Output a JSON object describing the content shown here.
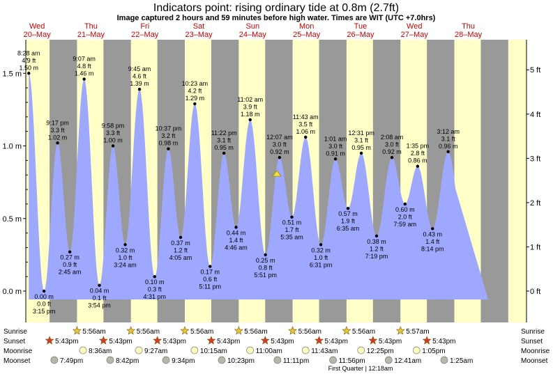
{
  "title": "Indicators point: rising  ordinary tide at 0.8m (2.7ft)",
  "subtitle": "Image captured 2 hours and 59 minutes before high water. Times are WIT (UTC +7.0hrs)",
  "colors": {
    "day_background": "#ffffc8",
    "night_background": "#999999",
    "tide_fill": "#9fa8ff",
    "day_label": "#cc0000",
    "sun_star": "#e8c53a",
    "sunset_star": "#d63a2a",
    "moonrise_circle": "#ffffc0",
    "moonset_circle": "#b8b8a8"
  },
  "days": [
    {
      "dow": "Wed",
      "date": "20–May"
    },
    {
      "dow": "Thu",
      "date": "21–May"
    },
    {
      "dow": "Fri",
      "date": "22–May"
    },
    {
      "dow": "Sat",
      "date": "23–May"
    },
    {
      "dow": "Sun",
      "date": "24–May"
    },
    {
      "dow": "Mon",
      "date": "25–May"
    },
    {
      "dow": "Tue",
      "date": "26–May"
    },
    {
      "dow": "Wed",
      "date": "27–May"
    },
    {
      "dow": "Thu",
      "date": "28–May"
    }
  ],
  "chart_data": {
    "type": "area",
    "title": "Indicators point: rising  ordinary tide at 0.8m (2.7ft)",
    "subtitle": "Image captured 2 hours and 59 minutes before high water. Times are WIT (UTC +7.0hrs)",
    "y_axis_left": {
      "unit": "m",
      "ticks": [
        "0.0 m",
        "0.5 m",
        "1.0 m",
        "1.5 m"
      ],
      "values": [
        0.0,
        0.5,
        1.0,
        1.5
      ],
      "range": [
        -0.05,
        1.72
      ]
    },
    "y_axis_right": {
      "unit": "ft",
      "ticks": [
        "0 ft",
        "1 ft",
        "2 ft",
        "3 ft",
        "4 ft",
        "5 ft"
      ],
      "values": [
        0,
        1,
        2,
        3,
        4,
        5
      ]
    },
    "x_range_days": [
      "20–May",
      "28–May"
    ],
    "current_level": {
      "height_m": 0.8,
      "height_ft": 2.7,
      "state": "rising",
      "day": "Sun 24–May"
    },
    "tides": [
      {
        "day": 0,
        "time": "8:28 am",
        "ft": "4.9 ft",
        "m": 1.5,
        "m_label": "1.50 m",
        "type": "high"
      },
      {
        "day": 0,
        "time": "3:15 pm",
        "ft": "0.0 ft",
        "m": 0.0,
        "m_label": "0.00 m",
        "type": "low"
      },
      {
        "day": 0,
        "time": "9:17 pm",
        "ft": "3.3 ft",
        "m": 1.02,
        "m_label": "1.02 m",
        "type": "high"
      },
      {
        "day": 1,
        "time": "2:45 am",
        "ft": "0.9 ft",
        "m": 0.27,
        "m_label": "0.27 m",
        "type": "low"
      },
      {
        "day": 1,
        "time": "9:07 am",
        "ft": "4.8 ft",
        "m": 1.46,
        "m_label": "1.46 m",
        "type": "high"
      },
      {
        "day": 1,
        "time": "3:54 pm",
        "ft": "0.1 ft",
        "m": 0.04,
        "m_label": "0.04 m",
        "type": "low"
      },
      {
        "day": 1,
        "time": "9:58 pm",
        "ft": "3.3 ft",
        "m": 1.0,
        "m_label": "1.00 m",
        "type": "high"
      },
      {
        "day": 2,
        "time": "3:24 am",
        "ft": "1.0 ft",
        "m": 0.32,
        "m_label": "0.32 m",
        "type": "low"
      },
      {
        "day": 2,
        "time": "9:45 am",
        "ft": "4.6 ft",
        "m": 1.39,
        "m_label": "1.39 m",
        "type": "high"
      },
      {
        "day": 2,
        "time": "4:31 pm",
        "ft": "0.3 ft",
        "m": 0.1,
        "m_label": "0.10 m",
        "type": "low"
      },
      {
        "day": 2,
        "time": "10:37 pm",
        "ft": "3.2 ft",
        "m": 0.98,
        "m_label": "0.98 m",
        "type": "high"
      },
      {
        "day": 3,
        "time": "4:05 am",
        "ft": "1.2 ft",
        "m": 0.37,
        "m_label": "0.37 m",
        "type": "low"
      },
      {
        "day": 3,
        "time": "10:23 am",
        "ft": "4.2 ft",
        "m": 1.29,
        "m_label": "1.29 m",
        "type": "high"
      },
      {
        "day": 3,
        "time": "5:11 pm",
        "ft": "0.6 ft",
        "m": 0.17,
        "m_label": "0.17 m",
        "type": "low"
      },
      {
        "day": 3,
        "time": "11:22 pm",
        "ft": "3.1 ft",
        "m": 0.95,
        "m_label": "0.95 m",
        "type": "high"
      },
      {
        "day": 4,
        "time": "4:46 am",
        "ft": "1.4 ft",
        "m": 0.44,
        "m_label": "0.44 m",
        "type": "low"
      },
      {
        "day": 4,
        "time": "11:02 am",
        "ft": "3.9 ft",
        "m": 1.18,
        "m_label": "1.18 m",
        "type": "high"
      },
      {
        "day": 4,
        "time": "5:51 pm",
        "ft": "0.8 ft",
        "m": 0.25,
        "m_label": "0.25 m",
        "type": "low"
      },
      {
        "day": 5,
        "time": "12:07 am",
        "ft": "3.0 ft",
        "m": 0.92,
        "m_label": "0.92 m",
        "type": "high"
      },
      {
        "day": 5,
        "time": "5:35 am",
        "ft": "1.7 ft",
        "m": 0.51,
        "m_label": "0.51 m",
        "type": "low"
      },
      {
        "day": 5,
        "time": "11:43 am",
        "ft": "3.5 ft",
        "m": 1.06,
        "m_label": "1.06 m",
        "type": "high"
      },
      {
        "day": 5,
        "time": "6:31 pm",
        "ft": "1.0 ft",
        "m": 0.32,
        "m_label": "0.32 m",
        "type": "low"
      },
      {
        "day": 6,
        "time": "1:01 am",
        "ft": "3.0 ft",
        "m": 0.91,
        "m_label": "0.91 m",
        "type": "high"
      },
      {
        "day": 6,
        "time": "6:35 am",
        "ft": "1.9 ft",
        "m": 0.57,
        "m_label": "0.57 m",
        "type": "low"
      },
      {
        "day": 6,
        "time": "12:31 pm",
        "ft": "3.1 ft",
        "m": 0.95,
        "m_label": "0.95 m",
        "type": "high"
      },
      {
        "day": 6,
        "time": "7:19 pm",
        "ft": "1.2 ft",
        "m": 0.38,
        "m_label": "0.38 m",
        "type": "low"
      },
      {
        "day": 7,
        "time": "2:08 am",
        "ft": "3.0 ft",
        "m": 0.92,
        "m_label": "0.92 m",
        "type": "high"
      },
      {
        "day": 7,
        "time": "7:59 am",
        "ft": "2.0 ft",
        "m": 0.6,
        "m_label": "0.60 m",
        "type": "low"
      },
      {
        "day": 7,
        "time": "1:35 pm",
        "ft": "2.8 ft",
        "m": 0.86,
        "m_label": "0.86 m",
        "type": "high"
      },
      {
        "day": 7,
        "time": "8:14 pm",
        "ft": "1.4 ft",
        "m": 0.43,
        "m_label": "0.43 m",
        "type": "low"
      },
      {
        "day": 8,
        "time": "3:12 am",
        "ft": "3.1 ft",
        "m": 0.96,
        "m_label": "0.96 m",
        "type": "high"
      }
    ]
  },
  "astro": {
    "row_labels": {
      "sunrise": "Sunrise",
      "sunset": "Sunset",
      "moonrise": "Moonrise",
      "moonset": "Moonset"
    },
    "sunrise": [
      {
        "day": 1,
        "time": "5:56am"
      },
      {
        "day": 2,
        "time": "5:56am"
      },
      {
        "day": 3,
        "time": "5:56am"
      },
      {
        "day": 4,
        "time": "5:56am"
      },
      {
        "day": 5,
        "time": "5:56am"
      },
      {
        "day": 6,
        "time": "5:56am"
      },
      {
        "day": 7,
        "time": "5:57am"
      }
    ],
    "sunset": [
      {
        "day": 0,
        "time": "5:43pm"
      },
      {
        "day": 1,
        "time": "5:43pm"
      },
      {
        "day": 2,
        "time": "5:43pm"
      },
      {
        "day": 3,
        "time": "5:43pm"
      },
      {
        "day": 4,
        "time": "5:43pm"
      },
      {
        "day": 5,
        "time": "5:43pm"
      },
      {
        "day": 6,
        "time": "5:43pm"
      },
      {
        "day": 7,
        "time": "5:43pm"
      }
    ],
    "moonrise": [
      {
        "day": 1,
        "time": "8:36am"
      },
      {
        "day": 2,
        "time": "9:27am"
      },
      {
        "day": 3,
        "time": "10:15am"
      },
      {
        "day": 4,
        "time": "11:00am"
      },
      {
        "day": 5,
        "time": "11:43am"
      },
      {
        "day": 6,
        "time": "12:25pm"
      },
      {
        "day": 7,
        "time": "1:05pm"
      }
    ],
    "moonset": [
      {
        "day": 0,
        "time": "7:49pm"
      },
      {
        "day": 1,
        "time": "8:42pm"
      },
      {
        "day": 2,
        "time": "9:34pm"
      },
      {
        "day": 3,
        "time": "10:23pm"
      },
      {
        "day": 4,
        "time": "11:11pm"
      },
      {
        "day": 5,
        "time": "11:56pm"
      },
      {
        "day": 7,
        "time": "12:41am"
      },
      {
        "day": 8,
        "time": "1:25am"
      }
    ],
    "moon_phase": "First Quarter | 12:18am"
  }
}
